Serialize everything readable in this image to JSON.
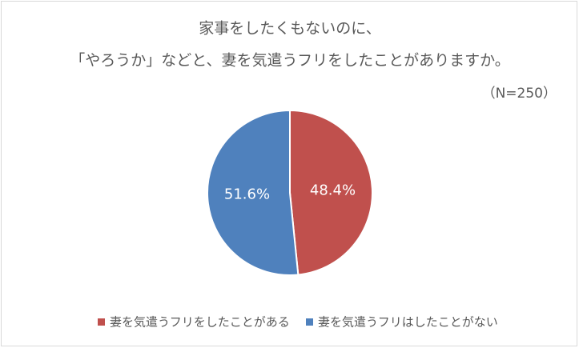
{
  "chart_data": {
    "type": "pie",
    "title": [
      "家事をしたくもないのに、",
      "「やろうか」などと、妻を気遣うフリをしたことがありますか。"
    ],
    "subtitle": "（N=250）",
    "categories": [
      "妻を気遣うフリをしたことがある",
      "妻を気遣うフリはしたことがない"
    ],
    "values": [
      48.4,
      51.6
    ],
    "value_labels": [
      "48.4%",
      "51.6%"
    ],
    "colors": [
      "#c0504d",
      "#4f81bd"
    ]
  }
}
